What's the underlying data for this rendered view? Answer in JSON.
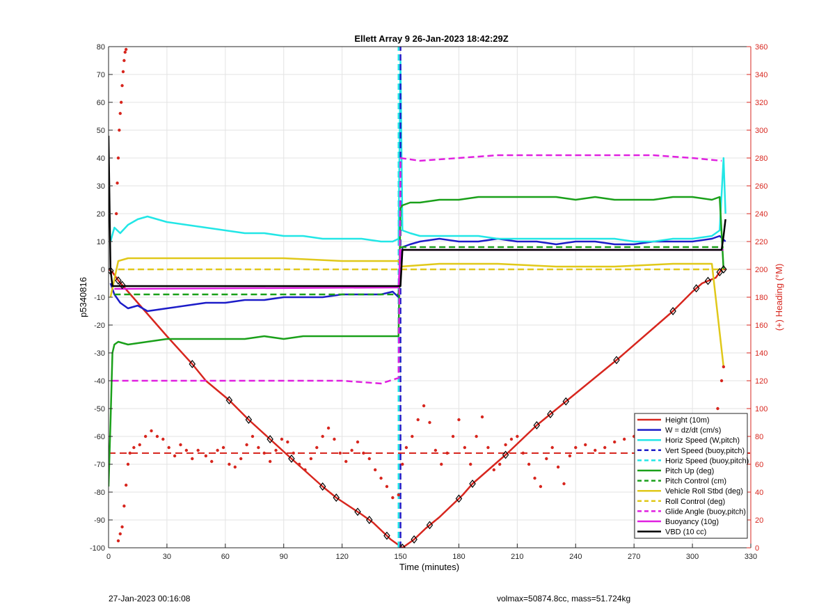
{
  "chart_data": {
    "type": "line",
    "title": "Ellett Array 9 26-Jan-2023 18:42:29Z",
    "xlabel": "Time (minutes)",
    "ylabel_left": "p5340816",
    "ylabel_right": "(+) Heading (°M)",
    "xlim": [
      0,
      330
    ],
    "ylim_left": [
      -100,
      80
    ],
    "ylim_right": [
      0,
      360
    ],
    "x_ticks": [
      0,
      30,
      60,
      90,
      120,
      150,
      180,
      210,
      240,
      270,
      300,
      330
    ],
    "y_ticks_left": [
      -100,
      -90,
      -80,
      -70,
      -60,
      -50,
      -40,
      -30,
      -20,
      -10,
      0,
      10,
      20,
      30,
      40,
      50,
      60,
      70,
      80
    ],
    "y_ticks_right": [
      0,
      20,
      40,
      60,
      80,
      100,
      120,
      140,
      160,
      180,
      200,
      220,
      240,
      260,
      280,
      300,
      320,
      340,
      360
    ],
    "grid": true,
    "legend_position": "bottom-right",
    "colors": {
      "red": "#d7261e",
      "blue": "#1c1cc8",
      "cyan": "#22e6e6",
      "green": "#1aa01a",
      "yellow": "#e0c81a",
      "magenta": "#e020e0",
      "black": "#000000"
    },
    "series": [
      {
        "name": "Height (10m)",
        "color": "#d7261e",
        "style": "solid",
        "axis": "left",
        "x": [
          0,
          2,
          5,
          10,
          20,
          30,
          43,
          50,
          62,
          72,
          83,
          94,
          110,
          117,
          130,
          136,
          145,
          149,
          151,
          157,
          163,
          170,
          182,
          187,
          205,
          220,
          227,
          234,
          262,
          290,
          300,
          305,
          312,
          315,
          317
        ],
        "y": [
          0,
          -1,
          -4,
          -8,
          -16,
          -24,
          -34,
          -40,
          -47,
          -54,
          -61,
          -68,
          -78,
          -82,
          -88,
          -91,
          -97,
          -99,
          -100,
          -97,
          -93,
          -89,
          -81,
          -77,
          -66,
          -56,
          -52,
          -48,
          -32,
          -15,
          -8,
          -5,
          -3,
          0,
          0
        ]
      },
      {
        "name": "W = dz/dt (cm/s)",
        "color": "#1c1cc8",
        "style": "solid",
        "axis": "left",
        "x": [
          1,
          3,
          6,
          10,
          15,
          20,
          30,
          40,
          50,
          60,
          70,
          80,
          90,
          100,
          110,
          120,
          130,
          140,
          146,
          149,
          150,
          151,
          155,
          160,
          170,
          180,
          190,
          200,
          210,
          220,
          230,
          240,
          250,
          260,
          270,
          280,
          290,
          300,
          310,
          314,
          317
        ],
        "y": [
          -5,
          -9,
          -12,
          -14,
          -13,
          -15,
          -14,
          -13,
          -12,
          -12,
          -11,
          -11,
          -10,
          -10,
          -10,
          -9,
          -9,
          -9,
          -8,
          -10,
          -1,
          8,
          9,
          10,
          11,
          10,
          10,
          11,
          10,
          10,
          9,
          10,
          10,
          9,
          9,
          10,
          10,
          10,
          11,
          12,
          10
        ]
      },
      {
        "name": "Horiz Speed (W,pitch)",
        "color": "#22e6e6",
        "style": "solid",
        "axis": "left",
        "x": [
          1,
          3,
          6,
          10,
          15,
          20,
          30,
          40,
          50,
          60,
          70,
          80,
          90,
          100,
          110,
          120,
          130,
          140,
          146,
          149,
          150,
          151,
          155,
          160,
          170,
          180,
          190,
          200,
          210,
          220,
          230,
          240,
          250,
          260,
          270,
          280,
          290,
          300,
          310,
          314,
          316,
          317
        ],
        "y": [
          10,
          15,
          13,
          16,
          18,
          19,
          17,
          16,
          15,
          14,
          13,
          13,
          12,
          12,
          11,
          11,
          11,
          10,
          10,
          11,
          75,
          14,
          13,
          12,
          12,
          12,
          12,
          11,
          11,
          11,
          11,
          11,
          11,
          11,
          10,
          10,
          11,
          11,
          12,
          14,
          40,
          20
        ]
      },
      {
        "name": "Vert Speed (buoy,pitch)",
        "color": "#1c1cc8",
        "style": "dashed",
        "axis": "left",
        "x": [
          150,
          150
        ],
        "y": [
          -100,
          80
        ]
      },
      {
        "name": "Horiz Speed (buoy,pitch)",
        "color": "#22e6e6",
        "style": "dashed",
        "axis": "left",
        "x": [
          149,
          149
        ],
        "y": [
          -100,
          80
        ]
      },
      {
        "name": "Pitch Up (deg)",
        "color": "#1aa01a",
        "style": "solid",
        "axis": "left",
        "x": [
          0,
          1,
          2,
          3,
          5,
          10,
          20,
          30,
          40,
          50,
          60,
          70,
          80,
          90,
          100,
          110,
          120,
          130,
          140,
          146,
          149,
          150,
          151,
          155,
          160,
          170,
          180,
          190,
          200,
          210,
          220,
          230,
          240,
          250,
          260,
          270,
          280,
          290,
          300,
          310,
          314,
          316
        ],
        "y": [
          -78,
          -55,
          -30,
          -27,
          -26,
          -27,
          -26,
          -25,
          -25,
          -25,
          -25,
          -25,
          -24,
          -25,
          -24,
          -24,
          -24,
          -24,
          -24,
          -24,
          -24,
          22,
          23,
          24,
          24,
          25,
          25,
          26,
          26,
          26,
          26,
          26,
          25,
          26,
          25,
          25,
          25,
          26,
          26,
          25,
          26,
          0
        ]
      },
      {
        "name": "Pitch Control (cm)",
        "color": "#1aa01a",
        "style": "dashed",
        "axis": "left",
        "x": [
          3,
          149,
          150,
          316
        ],
        "y": [
          -9,
          -9,
          8,
          8
        ]
      },
      {
        "name": "Vehicle Roll Stbd (deg)",
        "color": "#e0c81a",
        "style": "solid",
        "axis": "left",
        "x": [
          1,
          5,
          10,
          30,
          60,
          90,
          120,
          149,
          150,
          170,
          200,
          230,
          260,
          290,
          310,
          316
        ],
        "y": [
          -10,
          3,
          4,
          4,
          4,
          4,
          3,
          3,
          1,
          2,
          2,
          1,
          1,
          2,
          2,
          -35
        ]
      },
      {
        "name": "Roll Control (deg)",
        "color": "#e0c81a",
        "style": "dashed",
        "axis": "left",
        "x": [
          5,
          10,
          30,
          60,
          90,
          120,
          149,
          150,
          170,
          200,
          230,
          260,
          290,
          316
        ],
        "y": [
          0,
          0,
          0,
          0,
          0,
          0,
          0,
          0,
          0,
          0,
          0,
          0,
          0,
          0
        ]
      },
      {
        "name": "Glide Angle (buoy,pitch)",
        "color": "#e020e0",
        "style": "dashed",
        "axis": "left",
        "x": [
          2,
          10,
          30,
          60,
          90,
          120,
          140,
          149,
          150,
          160,
          180,
          200,
          220,
          240,
          260,
          280,
          300,
          315
        ],
        "y": [
          -40,
          -40,
          -40,
          -40,
          -40,
          -40,
          -41,
          -39,
          40,
          39,
          40,
          41,
          41,
          41,
          41,
          41,
          40,
          39
        ]
      },
      {
        "name": "Buoyancy (10g)",
        "color": "#e020e0",
        "style": "solid",
        "axis": "left",
        "x": [
          3,
          149,
          150,
          316
        ],
        "y": [
          -7,
          -6.5,
          7,
          7
        ]
      },
      {
        "name": "VBD (10 cc)",
        "color": "#000000",
        "style": "solid",
        "axis": "left",
        "x": [
          0,
          1,
          2,
          3,
          149,
          150,
          151,
          315,
          316,
          317
        ],
        "y": [
          48,
          0,
          -6,
          -6,
          -6,
          -6,
          7,
          7,
          12,
          18
        ]
      }
    ],
    "heading_mean": 68,
    "heading_points_deg": [
      [
        5,
        5
      ],
      [
        6,
        10
      ],
      [
        7,
        15
      ],
      [
        8,
        30
      ],
      [
        9,
        45
      ],
      [
        10,
        60
      ],
      [
        11,
        68
      ],
      [
        13,
        72
      ],
      [
        16,
        74
      ],
      [
        19,
        80
      ],
      [
        22,
        84
      ],
      [
        25,
        80
      ],
      [
        28,
        78
      ],
      [
        31,
        72
      ],
      [
        34,
        66
      ],
      [
        37,
        74
      ],
      [
        40,
        70
      ],
      [
        43,
        64
      ],
      [
        46,
        70
      ],
      [
        50,
        66
      ],
      [
        53,
        62
      ],
      [
        56,
        70
      ],
      [
        59,
        72
      ],
      [
        62,
        60
      ],
      [
        65,
        58
      ],
      [
        68,
        64
      ],
      [
        71,
        74
      ],
      [
        74,
        80
      ],
      [
        77,
        72
      ],
      [
        80,
        68
      ],
      [
        83,
        62
      ],
      [
        86,
        70
      ],
      [
        89,
        78
      ],
      [
        92,
        76
      ],
      [
        95,
        68
      ],
      [
        98,
        60
      ],
      [
        101,
        56
      ],
      [
        104,
        64
      ],
      [
        107,
        72
      ],
      [
        110,
        80
      ],
      [
        113,
        86
      ],
      [
        116,
        78
      ],
      [
        119,
        68
      ],
      [
        122,
        62
      ],
      [
        125,
        70
      ],
      [
        128,
        76
      ],
      [
        131,
        68
      ],
      [
        134,
        64
      ],
      [
        137,
        56
      ],
      [
        140,
        50
      ],
      [
        143,
        44
      ],
      [
        146,
        36
      ],
      [
        149,
        38
      ],
      [
        151,
        60
      ],
      [
        153,
        72
      ],
      [
        156,
        80
      ],
      [
        159,
        92
      ],
      [
        162,
        102
      ],
      [
        165,
        90
      ],
      [
        168,
        70
      ],
      [
        171,
        60
      ],
      [
        174,
        68
      ],
      [
        177,
        80
      ],
      [
        180,
        92
      ],
      [
        183,
        72
      ],
      [
        186,
        60
      ],
      [
        189,
        80
      ],
      [
        192,
        94
      ],
      [
        195,
        72
      ],
      [
        198,
        56
      ],
      [
        201,
        60
      ],
      [
        204,
        74
      ],
      [
        207,
        78
      ],
      [
        210,
        80
      ],
      [
        213,
        68
      ],
      [
        216,
        60
      ],
      [
        219,
        50
      ],
      [
        222,
        44
      ],
      [
        225,
        64
      ],
      [
        228,
        72
      ],
      [
        231,
        58
      ],
      [
        234,
        46
      ],
      [
        237,
        66
      ],
      [
        240,
        72
      ],
      [
        245,
        74
      ],
      [
        250,
        70
      ],
      [
        255,
        72
      ],
      [
        260,
        76
      ],
      [
        265,
        78
      ],
      [
        270,
        80
      ],
      [
        275,
        84
      ],
      [
        280,
        78
      ],
      [
        285,
        82
      ],
      [
        290,
        86
      ],
      [
        295,
        80
      ],
      [
        300,
        86
      ],
      [
        305,
        90
      ],
      [
        310,
        92
      ],
      [
        313,
        100
      ],
      [
        315,
        120
      ],
      [
        316,
        130
      ],
      [
        4,
        240
      ],
      [
        4.5,
        262
      ],
      [
        5,
        280
      ],
      [
        5.5,
        300
      ],
      [
        6,
        312
      ],
      [
        6.5,
        320
      ],
      [
        7,
        332
      ],
      [
        7.5,
        342
      ],
      [
        8,
        350
      ],
      [
        8.5,
        356
      ],
      [
        9,
        358
      ]
    ],
    "pivot_markers_x": [
      1,
      5,
      7,
      43,
      62,
      72,
      83,
      94,
      110,
      117,
      128,
      134,
      143,
      151,
      157,
      165,
      180,
      187,
      204,
      220,
      227,
      235,
      261,
      290,
      302,
      308,
      314,
      316
    ]
  },
  "footer": {
    "left": "27-Jan-2023 00:16:08",
    "right": "volmax=50874.8cc, mass=51.724kg"
  }
}
